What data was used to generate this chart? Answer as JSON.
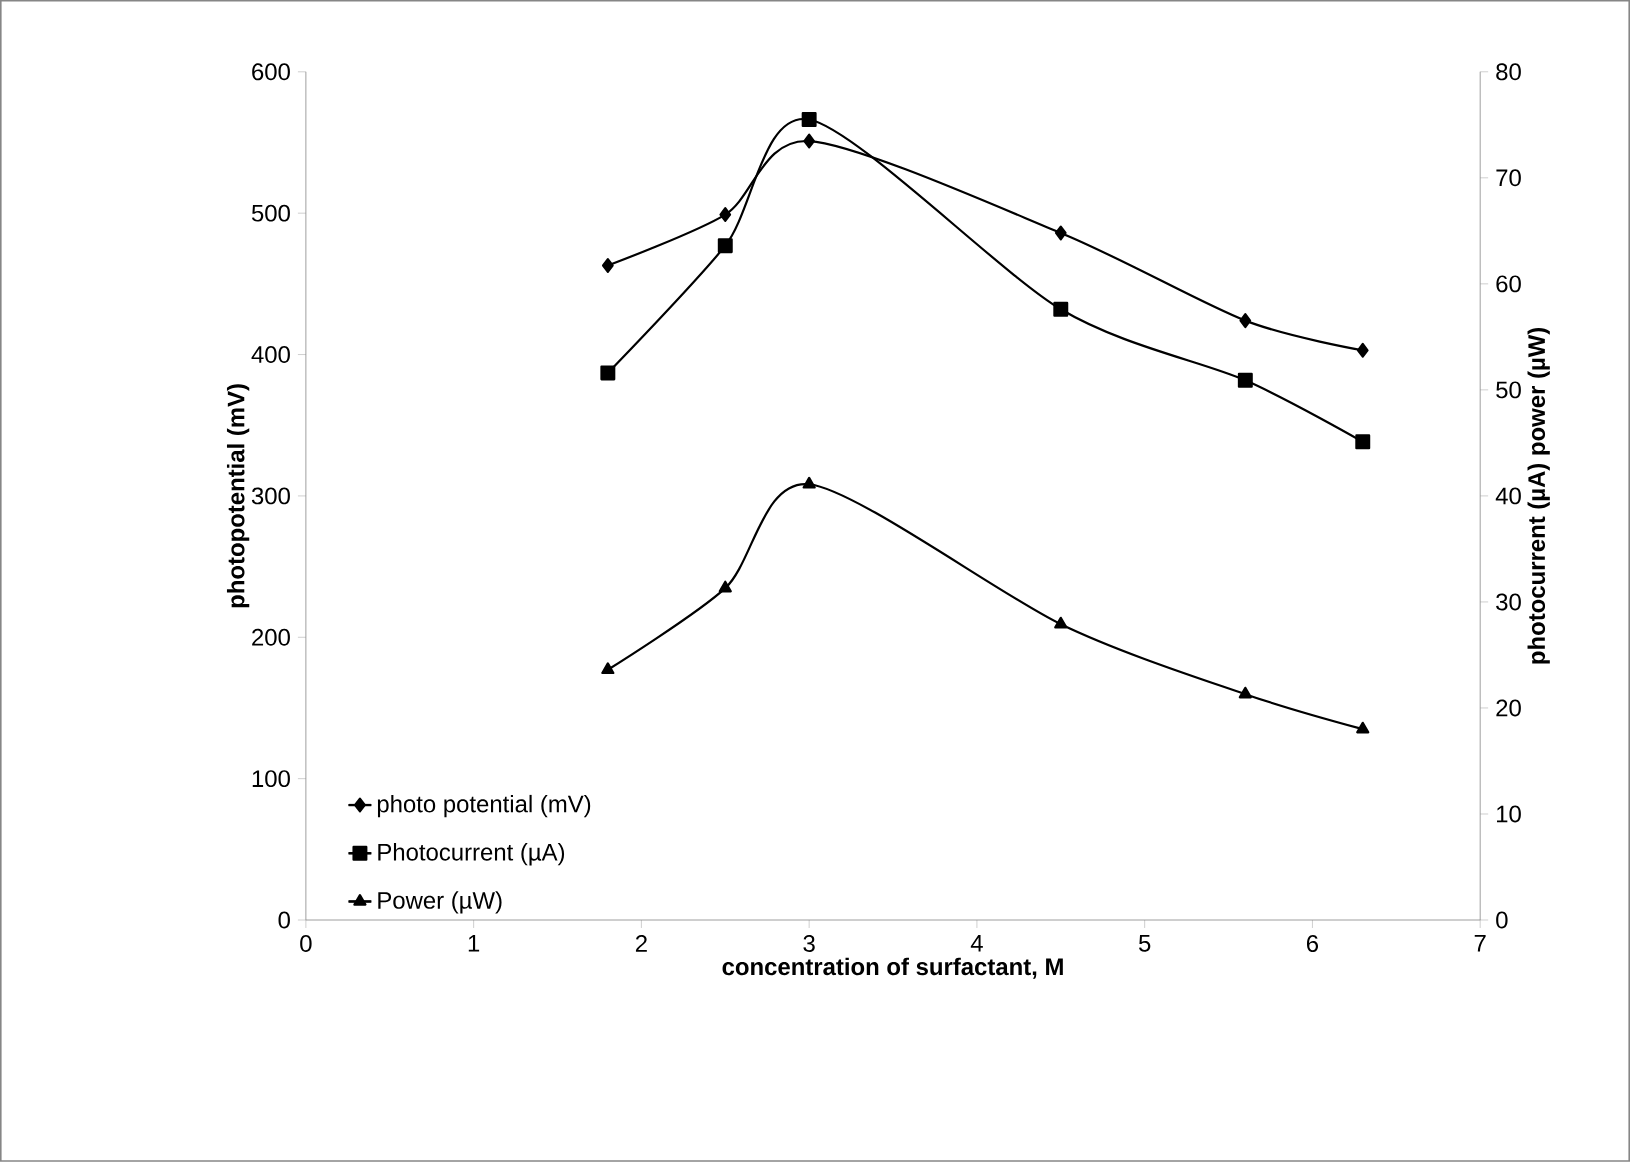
{
  "chart_data": {
    "type": "line",
    "xlabel": "concentration of surfactant, M",
    "ylabel": "photopotential (mV)",
    "y2label": "photocurrent (µA)  power (µW)",
    "x": [
      1.8,
      2.5,
      3,
      4.5,
      5.6,
      6.3
    ],
    "xlim": [
      0,
      7
    ],
    "xticks": [
      0,
      1,
      2,
      3,
      4,
      5,
      6,
      7
    ],
    "ylim": [
      0,
      600
    ],
    "yticks": [
      0,
      100,
      200,
      300,
      400,
      500,
      600
    ],
    "y2lim": [
      0,
      80
    ],
    "y2ticks": [
      0,
      10,
      20,
      30,
      40,
      50,
      60,
      70,
      80
    ],
    "legend": "bottom left",
    "grid": false,
    "line_style": "solid",
    "series": [
      {
        "name": "photo potential (mV)",
        "color": "#000000",
        "marker": "diamond",
        "values": [
          463,
          499,
          551,
          486,
          424,
          403
        ]
      },
      {
        "name": "Photocurrent (µA)",
        "color": "#000000",
        "marker": "square",
        "axis": "y2",
        "values": [
          51.6,
          63.6,
          75.5,
          57.6,
          50.9,
          45.1
        ]
      },
      {
        "name": "Power (µW)",
        "color": "#000000",
        "marker": "triangle",
        "axis": "y2",
        "values": [
          23.6,
          31.3,
          41.1,
          27.9,
          21.3,
          18.0
        ]
      }
    ]
  }
}
